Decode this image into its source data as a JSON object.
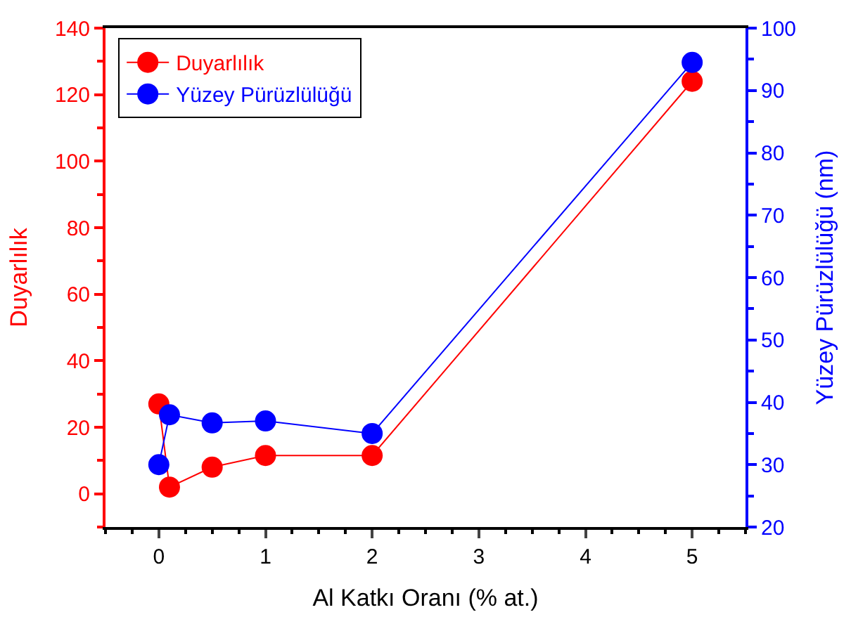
{
  "chart_data": {
    "type": "line",
    "xlabel": "Al Katkı Oranı (% at.)",
    "ylabel": "Duyarlılık",
    "y2label": "Yüzey Pürüzlülüğü (nm)",
    "x": [
      0,
      0.1,
      0.5,
      1,
      2,
      5
    ],
    "series": [
      {
        "name": "Duyarlılık",
        "color": "#ff0000",
        "values": [
          27,
          2,
          8,
          11.5,
          11.5,
          124
        ]
      },
      {
        "name": "Yüzey Pürüzlülüğü",
        "color": "#0000ff",
        "axis": "y2",
        "values": [
          30,
          38,
          36.7,
          37,
          35,
          94.5
        ]
      }
    ],
    "xlim": [
      -0.5,
      5.5
    ],
    "xticks": [
      0,
      1,
      2,
      3,
      4,
      5
    ],
    "ylim": [
      -10,
      140
    ],
    "yticks": [
      0,
      20,
      40,
      60,
      80,
      100,
      120,
      140
    ],
    "y2lim": [
      20,
      100
    ],
    "y2ticks": [
      20,
      30,
      40,
      50,
      60,
      70,
      80,
      90,
      100
    ],
    "marker": "circle",
    "line_style": "solid",
    "legend": "top left"
  }
}
